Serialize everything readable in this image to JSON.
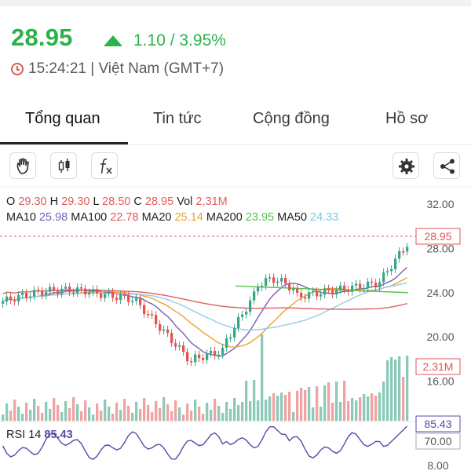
{
  "quote": {
    "price": "28.95",
    "change": "1.10 / 3.95%",
    "time": "15:24:21 | Việt Nam (GMT+7)"
  },
  "tabs": [
    {
      "label": "Tổng quan"
    },
    {
      "label": "Tin tức"
    },
    {
      "label": "Cộng đồng"
    },
    {
      "label": "Hồ sơ"
    }
  ],
  "toolbar": {
    "icons": [
      "hand-draw-icon",
      "candlestick-icon",
      "function-icon",
      "settings-icon",
      "share-icon"
    ]
  },
  "ohlc": {
    "o_label": "O",
    "o": "29.30",
    "h_label": "H",
    "h": "29.30",
    "l_label": "L",
    "l": "28.50",
    "c_label": "C",
    "c": "28.95",
    "vol_label": "Vol",
    "vol": "2,31M"
  },
  "ma": {
    "ma10_label": "MA10",
    "ma10": "25.98",
    "ma100_label": "MA100",
    "ma100": "22.78",
    "ma20_label": "MA20",
    "ma20": "25.14",
    "ma200_label": "MA200",
    "ma200": "23.95",
    "ma50_label": "MA50",
    "ma50": "24.33"
  },
  "rsi": {
    "label": "RSI 14",
    "value": "85.43"
  },
  "colors": {
    "up": "#2bb34a",
    "candle_up": "#3aa58a",
    "candle_down": "#e35454",
    "ma10": "#7a5fb5",
    "ma20": "#f0a030",
    "ma50": "#8fcdea",
    "ma100": "#e06060",
    "ma200": "#58c24a"
  },
  "chart_data": {
    "type": "candlestick",
    "price_axis": {
      "ticks": [
        "32.00",
        "28.00",
        "24.00",
        "20.00",
        "16.00"
      ],
      "ylim": [
        15,
        33
      ]
    },
    "current_price_tag": "28.95",
    "volume_tag": "2.31M",
    "rsi_axis": {
      "ticks": [
        "70.00"
      ],
      "current_tag": "85.43",
      "bottom_tick": "8.00"
    }
  }
}
